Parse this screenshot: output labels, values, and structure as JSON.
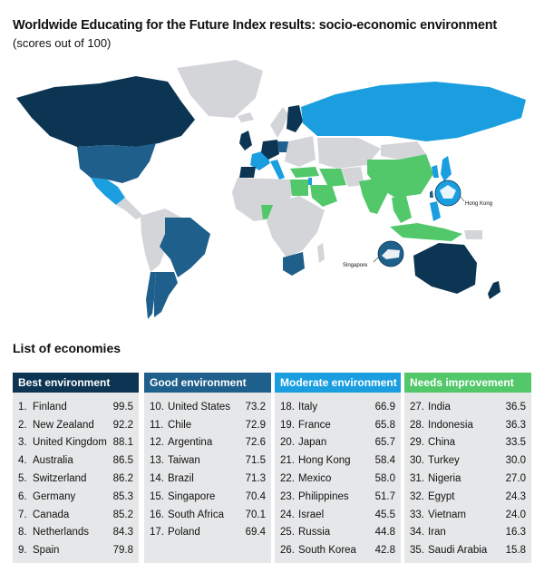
{
  "title": "Worldwide Educating for the Future Index results: socio-economic environment",
  "subtitle": "(scores out of 100)",
  "map": {
    "callouts": [
      "Hong Kong",
      "Singapore"
    ],
    "colors": {
      "best": "#0b3553",
      "good": "#1f5f8b",
      "moderate": "#1a9ee0",
      "needs": "#52c86b",
      "no_data": "#d3d5d8"
    }
  },
  "list_title": "List of economies",
  "columns": [
    {
      "header": "Best environment",
      "color": "#0b3553",
      "rows": [
        {
          "rank": "1.",
          "name": "Finland",
          "score": "99.5"
        },
        {
          "rank": "2.",
          "name": "New Zealand",
          "score": "92.2"
        },
        {
          "rank": "3.",
          "name": "United Kingdom",
          "score": "88.1"
        },
        {
          "rank": "4.",
          "name": "Australia",
          "score": "86.5"
        },
        {
          "rank": "5.",
          "name": "Switzerland",
          "score": "86.2"
        },
        {
          "rank": "6.",
          "name": "Germany",
          "score": "85.3"
        },
        {
          "rank": "7.",
          "name": "Canada",
          "score": "85.2"
        },
        {
          "rank": "8.",
          "name": "Netherlands",
          "score": "84.3"
        },
        {
          "rank": "9.",
          "name": "Spain",
          "score": "79.8"
        }
      ]
    },
    {
      "header": "Good environment",
      "color": "#1f5f8b",
      "rows": [
        {
          "rank": "10.",
          "name": "United States",
          "score": "73.2"
        },
        {
          "rank": "11.",
          "name": "Chile",
          "score": "72.9"
        },
        {
          "rank": "12.",
          "name": "Argentina",
          "score": "72.6"
        },
        {
          "rank": "13.",
          "name": "Taiwan",
          "score": "71.5"
        },
        {
          "rank": "14.",
          "name": "Brazil",
          "score": "71.3"
        },
        {
          "rank": "15.",
          "name": "Singapore",
          "score": "70.4"
        },
        {
          "rank": "16.",
          "name": "South Africa",
          "score": "70.1"
        },
        {
          "rank": "17.",
          "name": "Poland",
          "score": "69.4"
        }
      ]
    },
    {
      "header": "Moderate environment",
      "color": "#1a9ee0",
      "rows": [
        {
          "rank": "18.",
          "name": "Italy",
          "score": "66.9"
        },
        {
          "rank": "19.",
          "name": "France",
          "score": "65.8"
        },
        {
          "rank": "20.",
          "name": "Japan",
          "score": "65.7"
        },
        {
          "rank": "21.",
          "name": "Hong Kong",
          "score": "58.4"
        },
        {
          "rank": "22.",
          "name": "Mexico",
          "score": "58.0"
        },
        {
          "rank": "23.",
          "name": "Philippines",
          "score": "51.7"
        },
        {
          "rank": "24.",
          "name": "Israel",
          "score": "45.5"
        },
        {
          "rank": "25.",
          "name": "Russia",
          "score": "44.8"
        },
        {
          "rank": "26.",
          "name": "South Korea",
          "score": "42.8"
        }
      ]
    },
    {
      "header": "Needs improvement",
      "color": "#52c86b",
      "rows": [
        {
          "rank": "27.",
          "name": "India",
          "score": "36.5"
        },
        {
          "rank": "28.",
          "name": "Indonesia",
          "score": "36.3"
        },
        {
          "rank": "29.",
          "name": "China",
          "score": "33.5"
        },
        {
          "rank": "30.",
          "name": "Turkey",
          "score": "30.0"
        },
        {
          "rank": "31.",
          "name": "Nigeria",
          "score": "27.0"
        },
        {
          "rank": "32.",
          "name": "Egypt",
          "score": "24.3"
        },
        {
          "rank": "33.",
          "name": "Vietnam",
          "score": "24.0"
        },
        {
          "rank": "34.",
          "name": "Iran",
          "score": "16.3"
        },
        {
          "rank": "35.",
          "name": "Saudi Arabia",
          "score": "15.8"
        }
      ]
    }
  ]
}
